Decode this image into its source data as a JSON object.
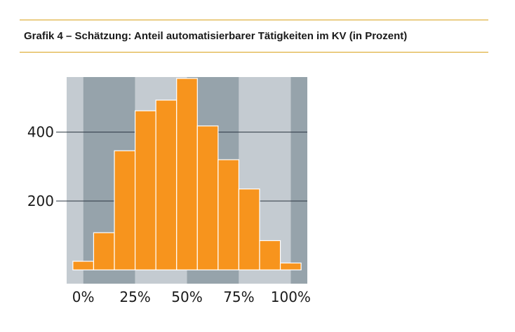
{
  "title": "Grafik 4 – Schätzung: Anteil automatisierbarer Tätigkeiten im KV (in Prozent)",
  "colors": {
    "rule": "#d9a21b",
    "bar": "#f7941d",
    "bar_edge": "#ffffff",
    "band_light": "#c4cbd1",
    "band_dark": "#96a3ab",
    "grid": "#2a3440"
  },
  "chart_data": {
    "type": "bar",
    "title": "Grafik 4 – Schätzung: Anteil automatisierbarer Tätigkeiten im KV (in Prozent)",
    "xlabel": "",
    "ylabel": "",
    "bin_width": 0.1,
    "x": [
      0.0,
      0.1,
      0.2,
      0.3,
      0.4,
      0.5,
      0.6,
      0.7,
      0.8,
      0.9,
      1.0
    ],
    "values": [
      25,
      108,
      346,
      462,
      493,
      556,
      418,
      320,
      235,
      85,
      20
    ],
    "xlim": [
      -0.08,
      1.08
    ],
    "ylim": [
      -40,
      560
    ],
    "x_ticks": [
      0,
      0.25,
      0.5,
      0.75,
      1.0
    ],
    "x_tick_labels": [
      "0%",
      "25%",
      "50%",
      "75%",
      "100%"
    ],
    "y_ticks": [
      200,
      400
    ],
    "y_tick_labels": [
      "200",
      "400"
    ],
    "grid": "horizontal lines at y ticks",
    "background": "alternating vertical bands",
    "legend": "none"
  }
}
